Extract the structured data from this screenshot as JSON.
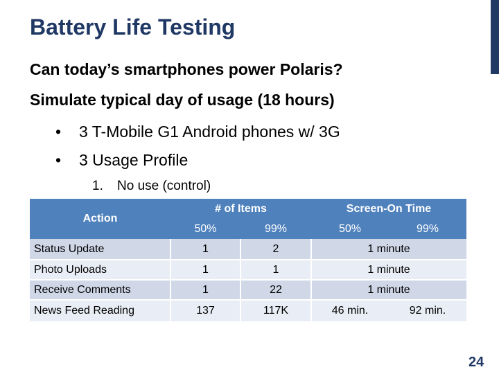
{
  "slide": {
    "title": "Battery Life Testing",
    "heading1": "Can today’s smartphones power Polaris?",
    "heading2": "Simulate typical day of usage (18 hours)",
    "bullets": [
      "3 T-Mobile G1 Android phones w/ 3G",
      "3 Usage Profile"
    ],
    "bullet_glyph": "•",
    "sub_item": {
      "number": "1.",
      "text": "No use (control)"
    },
    "page_number": "24",
    "accent_color": "#1f3864"
  },
  "table": {
    "header": {
      "action": "Action",
      "items_group": "# of Items",
      "screen_group": "Screen-On Time",
      "items_cols": [
        "50%",
        "99%"
      ],
      "screen_cols": [
        "50%",
        "99%"
      ]
    },
    "rows": [
      {
        "action": "Status Update",
        "items50": "1",
        "items99": "2",
        "screen": "1 minute"
      },
      {
        "action": "Photo Uploads",
        "items50": "1",
        "items99": "1",
        "screen": "1 minute"
      },
      {
        "action": "Receive Comments",
        "items50": "1",
        "items99": "22",
        "screen": "1 minute"
      },
      {
        "action": "News Feed Reading",
        "items50": "137",
        "items99": "117K",
        "screen50": "46 min.",
        "screen99": "92 min."
      }
    ]
  }
}
